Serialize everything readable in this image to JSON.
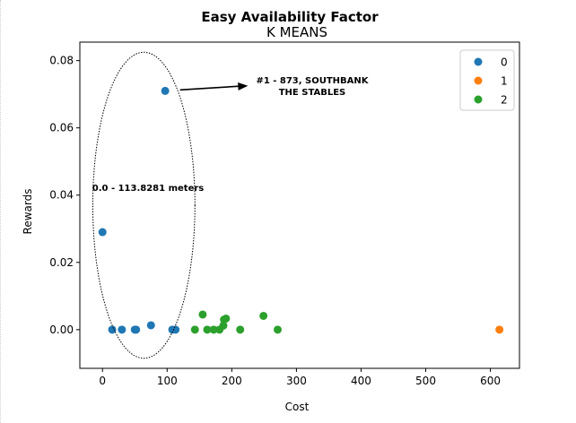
{
  "chart_data": {
    "type": "scatter",
    "title": "Easy Availability Factor",
    "subtitle": "K MEANS",
    "xlabel": "Cost",
    "ylabel": "Rewards",
    "xlim": [
      -35,
      645
    ],
    "ylim": [
      -0.0115,
      0.0855
    ],
    "xticks": [
      0,
      100,
      200,
      300,
      400,
      500,
      600
    ],
    "yticks": [
      0.0,
      0.02,
      0.04,
      0.06,
      0.08
    ],
    "xtick_labels": [
      "0",
      "100",
      "200",
      "300",
      "400",
      "500",
      "600"
    ],
    "ytick_labels": [
      "0.00",
      "0.02",
      "0.04",
      "0.06",
      "0.08"
    ],
    "grid": false,
    "legend_position": "top-right",
    "series": [
      {
        "name": "0",
        "color": "#1f77b4",
        "points": [
          [
            0,
            0.029
          ],
          [
            97,
            0.071
          ],
          [
            15,
            0.0
          ],
          [
            30,
            0.0
          ],
          [
            50,
            0.0
          ],
          [
            52,
            0.0
          ],
          [
            75,
            0.0013
          ],
          [
            108,
            0.0
          ],
          [
            113,
            0.0
          ]
        ]
      },
      {
        "name": "1",
        "color": "#ff7f0e",
        "points": [
          [
            614,
            0.0
          ]
        ]
      },
      {
        "name": "2",
        "color": "#2ca02c",
        "points": [
          [
            143,
            0.0
          ],
          [
            155,
            0.0045
          ],
          [
            162,
            0.0
          ],
          [
            172,
            0.0
          ],
          [
            181,
            0.0
          ],
          [
            187,
            0.0012
          ],
          [
            188,
            0.003
          ],
          [
            191,
            0.0033
          ],
          [
            213,
            0.0
          ],
          [
            249,
            0.0041
          ],
          [
            271,
            0.0
          ]
        ]
      }
    ],
    "annotations": {
      "range_label": "0.0 - 113.8281 meters",
      "point_label_line1": "#1 - 873, SOUTHBANK",
      "point_label_line2": "THE STABLES"
    },
    "ellipse": {
      "center": [
        64,
        0.037
      ],
      "x_radius": 79,
      "y_radius": 0.0455
    },
    "arrow": {
      "from": [
        120,
        0.0713
      ],
      "to": [
        225,
        0.0725
      ]
    }
  }
}
